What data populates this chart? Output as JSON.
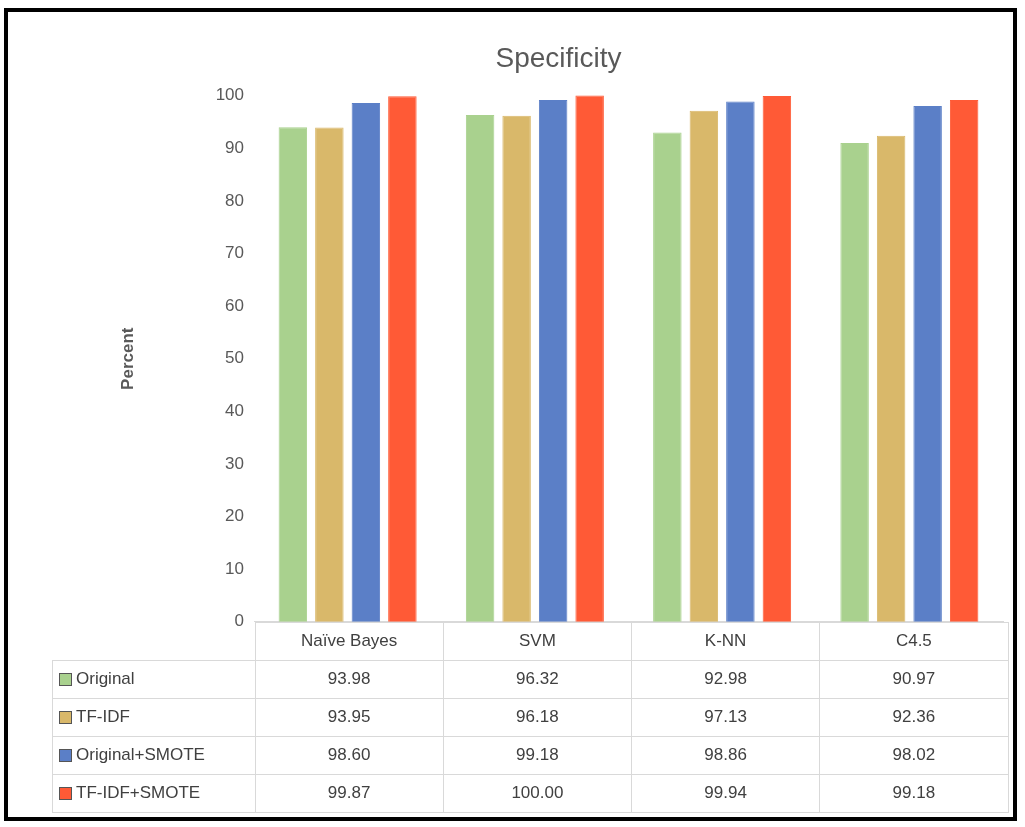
{
  "chart_data": {
    "type": "bar",
    "title": "Specificity",
    "ylabel": "Percent",
    "categories": [
      "Naïve Bayes",
      "SVM",
      "K-NN",
      "C4.5"
    ],
    "series": [
      {
        "name": "Original",
        "color": "#a9d18e",
        "values": [
          93.98,
          96.32,
          92.98,
          90.97
        ],
        "value_labels": [
          "93.98",
          "96.32",
          "92.98",
          "90.97"
        ]
      },
      {
        "name": "TF-IDF",
        "color": "#d9b86a",
        "values": [
          93.95,
          96.18,
          97.13,
          92.36
        ],
        "value_labels": [
          "93.95",
          "96.18",
          "97.13",
          "92.36"
        ]
      },
      {
        "name": "Original+SMOTE",
        "color": "#5b7fc7",
        "values": [
          98.6,
          99.18,
          98.86,
          98.02
        ],
        "value_labels": [
          "98.60",
          "99.18",
          "98.86",
          "98.02"
        ]
      },
      {
        "name": "TF-IDF+SMOTE",
        "color": "#ff5a36",
        "values": [
          99.87,
          100.0,
          99.94,
          99.18
        ],
        "value_labels": [
          "99.87",
          "100.00",
          "99.94",
          "99.18"
        ]
      }
    ],
    "ylim": [
      0,
      100
    ],
    "yticks": [
      0,
      10,
      20,
      30,
      40,
      50,
      60,
      70,
      80,
      90,
      100
    ],
    "grid": false,
    "legend": "bottom"
  }
}
